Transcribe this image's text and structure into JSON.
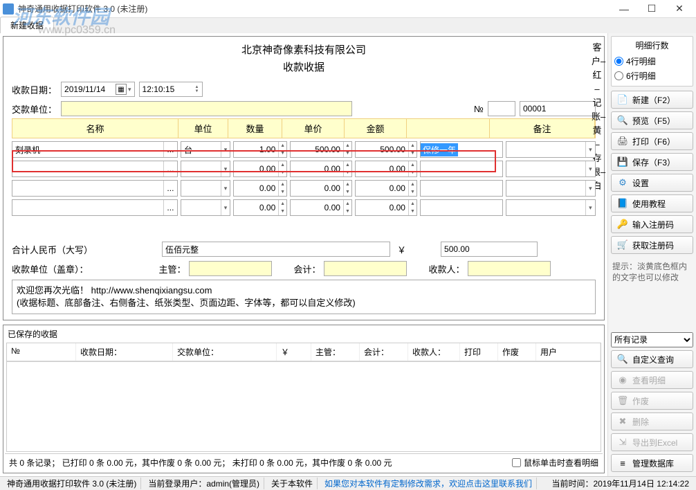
{
  "window": {
    "title": "神奇通用收据打印软件 3.0 (未注册)",
    "tab": "新建收据"
  },
  "watermark": {
    "line1": "河东软件园",
    "line2": "www.pc0359.cn"
  },
  "receipt": {
    "company": "北京神奇像素科技有限公司",
    "title": "收款收据",
    "side_text": "客户–红 – 记账–黄 – 存根–白",
    "date_label": "收款日期：",
    "date": "2019/11/14",
    "time": "12:10:15",
    "payer_label": "交款单位：",
    "payer": "",
    "no_label": "№",
    "no_value": "00001",
    "columns": {
      "name": "名称",
      "unit": "单位",
      "qty": "数量",
      "price": "单价",
      "amount": "金额",
      "remark": "备注"
    },
    "rows": [
      {
        "name": "刻录机",
        "unit": "台",
        "qty": "1.00",
        "price": "500.00",
        "amount": "500.00",
        "remark_sel": "保修一年",
        "highlight": true
      },
      {
        "name": "",
        "unit": "",
        "qty": "0.00",
        "price": "0.00",
        "amount": "0.00",
        "remark_sel": ""
      },
      {
        "name": "",
        "unit": "",
        "qty": "0.00",
        "price": "0.00",
        "amount": "0.00",
        "remark_sel": ""
      },
      {
        "name": "",
        "unit": "",
        "qty": "0.00",
        "price": "0.00",
        "amount": "0.00",
        "remark_sel": ""
      }
    ],
    "total_label": "合计人民币（大写）",
    "total_cn": "伍佰元整",
    "currency": "￥",
    "total_num": "500.00",
    "unit_label": "收款单位（盖章）：",
    "mgr_label": "主管：",
    "acct_label": "会计：",
    "recv_label": "收款人：",
    "note_l1": "欢迎您再次光临！ http://www.shenqixiangsu.com",
    "note_l2": "(收据标题、底部备注、右侧备注、纸张类型、页面边距、字体等，都可以自定义修改)"
  },
  "saved": {
    "title": "已保存的收据",
    "cols": {
      "no": "№",
      "date": "收款日期：",
      "payer": "交款单位：",
      "amt": "￥",
      "mgr": "主管：",
      "acct": "会计：",
      "recv": "收款人：",
      "print": "打印",
      "void": "作废",
      "user": "用户"
    },
    "footer": "共 0 条记录；   已打印 0 条 0.00 元，其中作废 0 条 0.00 元；   未打印 0 条 0.00 元，其中作废 0 条 0.00 元",
    "checkbox": "鼠标单击时查看明细"
  },
  "right": {
    "rows_title": "明细行数",
    "radio4": "4行明细",
    "radio6": "6行明细",
    "btn_new": "新建（F2）",
    "btn_preview": "预览（F5）",
    "btn_print": "打印（F6）",
    "btn_save": "保存（F3）",
    "btn_settings": "设置",
    "btn_tutorial": "使用教程",
    "btn_regcode": "输入注册码",
    "btn_getcode": "获取注册码",
    "hint": "提示：淡黄底色框内的文字也可以修改",
    "filter": "所有记录",
    "btn_query": "自定义查询",
    "btn_detail": "查看明细",
    "btn_void": "作废",
    "btn_delete": "删除",
    "btn_excel": "导出到Excel",
    "btn_db": "管理数据库"
  },
  "status": {
    "s1": "神奇通用收据打印软件 3.0 (未注册)",
    "s2": "当前登录用户：admin(管理员)",
    "s3": "关于本软件",
    "s4": "如果您对本软件有定制修改需求，欢迎点击这里联系我们",
    "s5": "当前时间：2019年11月14日 12:14:22"
  },
  "colors": {
    "yellow": "#ffffcc",
    "highlight": "#e03030",
    "selection": "#3399ff"
  }
}
